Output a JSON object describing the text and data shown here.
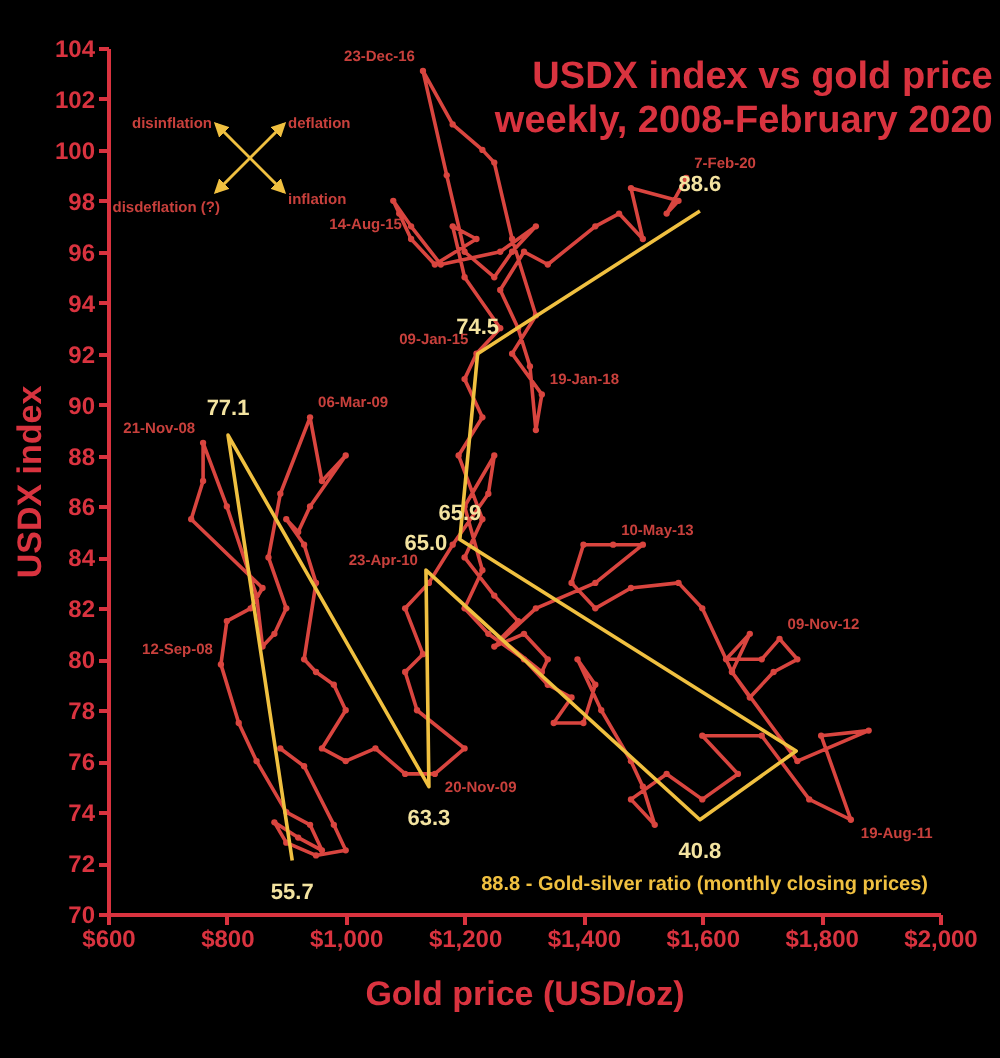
{
  "chart_data": {
    "type": "line",
    "title": "USDX index vs gold price",
    "subtitle": "weekly, 2008-February 2020",
    "xlabel": "Gold price (USD/oz)",
    "ylabel": "USDX index",
    "xlim": [
      600,
      2000
    ],
    "xticks": [
      {
        "value": 600,
        "label": "$600"
      },
      {
        "value": 800,
        "label": "$800"
      },
      {
        "value": 1000,
        "label": "$1,000"
      },
      {
        "value": 1200,
        "label": "$1,200"
      },
      {
        "value": 1400,
        "label": "$1,400"
      },
      {
        "value": 1600,
        "label": "$1,600"
      },
      {
        "value": 1800,
        "label": "$1,800"
      },
      {
        "value": 2000,
        "label": "$2,000"
      }
    ],
    "ylim": [
      70,
      104
    ],
    "yticks": [
      70,
      72,
      74,
      76,
      78,
      80,
      82,
      84,
      86,
      88,
      90,
      92,
      94,
      96,
      98,
      100,
      102,
      104
    ],
    "grid": false,
    "marker": "circle",
    "series": [
      {
        "color": "#d9453f",
        "x": [
          890,
          930,
          980,
          1000,
          950,
          900,
          880,
          920,
          960,
          940,
          900,
          850,
          820,
          790,
          800,
          840,
          860,
          740,
          760,
          760,
          800,
          850,
          860,
          880,
          900,
          870,
          890,
          940,
          960,
          1000,
          940,
          920,
          900,
          930,
          950,
          930,
          950,
          980,
          1000,
          960,
          1000,
          1050,
          1100,
          1150,
          1200,
          1120,
          1100,
          1130,
          1100,
          1140,
          1180,
          1240,
          1250,
          1200,
          1230,
          1200,
          1240,
          1300,
          1340,
          1380,
          1350,
          1400,
          1420,
          1390,
          1430,
          1480,
          1500,
          1520,
          1480,
          1540,
          1600,
          1660,
          1600,
          1700,
          1780,
          1850,
          1800,
          1880,
          1760,
          1650,
          1680,
          1640,
          1700,
          1730,
          1760,
          1720,
          1680,
          1650,
          1600,
          1560,
          1480,
          1420,
          1380,
          1400,
          1450,
          1500,
          1420,
          1320,
          1250,
          1300,
          1340,
          1330,
          1260,
          1290,
          1250,
          1200,
          1230,
          1190,
          1230,
          1200,
          1220,
          1260,
          1200,
          1180,
          1220,
          1150,
          1110,
          1090,
          1080,
          1110,
          1160,
          1260,
          1320,
          1280,
          1250,
          1200,
          1170,
          1130,
          1180,
          1230,
          1250,
          1280,
          1320,
          1280,
          1330,
          1320,
          1310,
          1290,
          1260,
          1300,
          1340,
          1420,
          1460,
          1500,
          1480,
          1560,
          1540,
          1573
        ],
        "values": [
          76.5,
          75.8,
          73.5,
          72.5,
          72.3,
          72.8,
          73.6,
          73,
          72.5,
          73.5,
          74,
          76,
          77.5,
          79.8,
          81.5,
          82,
          82.8,
          85.5,
          87,
          88.5,
          86,
          82.5,
          80.5,
          81,
          82,
          84,
          86.5,
          89.5,
          87,
          88,
          86,
          85,
          85.5,
          84.5,
          83,
          80,
          79.5,
          79,
          78,
          76.5,
          76,
          76.5,
          75.5,
          75.5,
          76.5,
          78,
          79.5,
          80.2,
          82,
          83,
          84.5,
          86.5,
          88,
          86,
          83.5,
          82,
          81,
          80,
          79,
          78.5,
          77.5,
          77.5,
          79,
          80,
          78,
          76,
          75,
          73.5,
          74.5,
          75.5,
          74.5,
          75.5,
          77,
          77,
          74.5,
          73.7,
          77,
          77.2,
          76,
          79.5,
          81,
          80,
          80,
          80.8,
          80,
          79.5,
          78.5,
          79.5,
          82,
          83,
          82.8,
          82,
          83,
          84.5,
          84.5,
          84.5,
          83,
          82,
          80.5,
          81,
          80,
          79.5,
          80.8,
          81.5,
          82.5,
          84,
          85.5,
          88,
          89.5,
          91,
          92,
          93,
          95,
          97,
          96.5,
          95.5,
          96.5,
          97.5,
          98,
          97,
          95.5,
          96,
          97,
          96,
          95,
          96,
          99,
          103.1,
          101,
          100,
          99.5,
          96.5,
          93.5,
          92,
          90.4,
          89,
          91.5,
          93,
          94.5,
          96,
          95.5,
          97,
          97.5,
          96.5,
          98.5,
          98,
          97.5,
          98.9
        ]
      },
      {
        "color": "#f0c040",
        "marker": "none",
        "x": [
          910,
          802,
          1140,
          1135,
          1596,
          1758,
          1192,
          1222,
          1596
        ],
        "values": [
          72.1,
          88.8,
          75.0,
          83.5,
          73.7,
          76.4,
          84.7,
          92.0,
          97.6
        ]
      }
    ],
    "annotations": [
      "disinflation",
      "deflation",
      "disdeflation (?)",
      "inflation",
      "88.8 - Gold-silver ratio (monthly closing prices)",
      {
        "text": "55.7",
        "x": 910,
        "y": 72.1
      },
      {
        "text": "77.1",
        "x": 802,
        "y": 88.8
      },
      {
        "text": "63.3",
        "x": 1140,
        "y": 75.0
      },
      {
        "text": "65.0",
        "x": 1135,
        "y": 83.5
      },
      {
        "text": "40.8",
        "x": 1596,
        "y": 73.7
      },
      {
        "text": "65.9",
        "x": 1192,
        "y": 84.7
      },
      {
        "text": "74.5",
        "x": 1222,
        "y": 92.0
      },
      {
        "text": "88.6",
        "x": 1596,
        "y": 97.6
      },
      {
        "text": "23-Dec-16",
        "x": 1130,
        "y": 103.1
      },
      {
        "text": "7-Feb-20",
        "x": 1573,
        "y": 98.9
      },
      {
        "text": "14-Aug-15",
        "x": 1108,
        "y": 96.5
      },
      {
        "text": "09-Jan-15",
        "x": 1220,
        "y": 92
      },
      {
        "text": "19-Jan-18",
        "x": 1330,
        "y": 90.4
      },
      {
        "text": "21-Nov-08",
        "x": 760,
        "y": 88.5
      },
      {
        "text": "06-Mar-09",
        "x": 940,
        "y": 89.5
      },
      {
        "text": "10-May-13",
        "x": 1450,
        "y": 84.5
      },
      {
        "text": "23-Apr-10",
        "x": 1135,
        "y": 83.3
      },
      {
        "text": "09-Nov-12",
        "x": 1730,
        "y": 80.8
      },
      {
        "text": "12-Sep-08",
        "x": 790,
        "y": 79.8
      },
      {
        "text": "20-Nov-09",
        "x": 1150,
        "y": 75.5
      },
      {
        "text": "19-Aug-11",
        "x": 1850,
        "y": 73.7
      }
    ]
  }
}
